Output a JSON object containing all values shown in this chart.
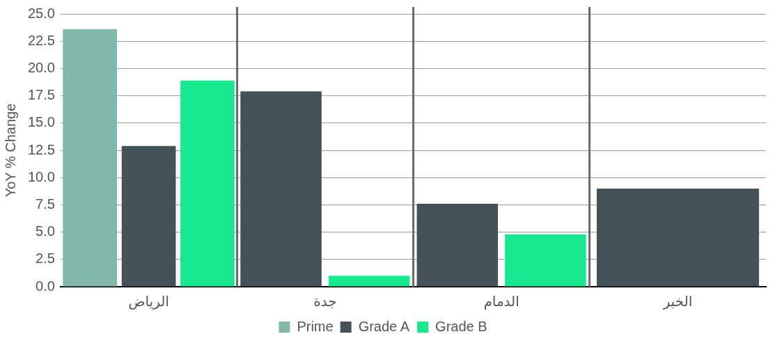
{
  "chart_data": {
    "type": "bar",
    "ylabel": "YoY % Change",
    "categories": [
      "الرياض",
      "جدة",
      "الدمام",
      "الخبر"
    ],
    "series": [
      {
        "name": "Prime",
        "color": "#80b9ab",
        "values": [
          23.6,
          null,
          null,
          null
        ]
      },
      {
        "name": "Grade A",
        "color": "#435256",
        "values": [
          12.9,
          17.9,
          7.6,
          9.0
        ]
      },
      {
        "name": "Grade B",
        "color": "#17e88f",
        "values": [
          18.9,
          1.0,
          4.8,
          null
        ]
      }
    ],
    "ylim": [
      0,
      25
    ],
    "yticks": [
      {
        "value": 0,
        "label": "0.0"
      },
      {
        "value": 2.5,
        "label": "2.5"
      },
      {
        "value": 5,
        "label": "5.0"
      },
      {
        "value": 7.5,
        "label": "7.5"
      },
      {
        "value": 10,
        "label": "10.0"
      },
      {
        "value": 12.5,
        "label": "12.5"
      },
      {
        "value": 15,
        "label": "15.0"
      },
      {
        "value": 17.5,
        "label": "17.5"
      },
      {
        "value": 20,
        "label": "20.0"
      },
      {
        "value": 22.5,
        "label": "22.5"
      },
      {
        "value": 25,
        "label": "25.0"
      }
    ],
    "grid": "y",
    "legend": "bottom"
  }
}
